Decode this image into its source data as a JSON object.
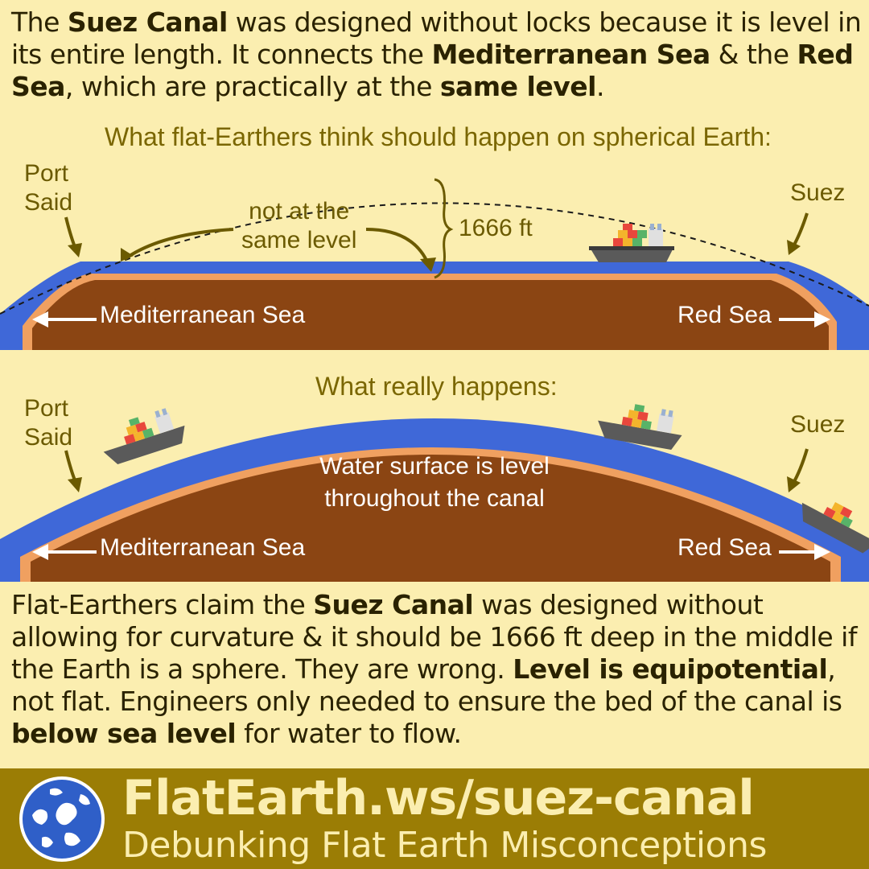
{
  "intro": {
    "t1": "The ",
    "b1": "Suez Canal",
    "t2": " was designed without locks because it is level in its entire length. It connects the ",
    "b2": "Mediterranean Sea",
    "t3": " & the ",
    "b3": "Red Sea",
    "t4": ", which are practically at the ",
    "b4": "same level",
    "t5": "."
  },
  "diagram_top": {
    "caption": "What flat-Earthers think should happen on spherical Earth:",
    "port_said": [
      "Port",
      "Said"
    ],
    "suez": "Suez",
    "not_level": [
      "not at the",
      "same level"
    ],
    "height": "1666 ft",
    "sea_left": "Mediterranean Sea",
    "sea_right": "Red Sea"
  },
  "diagram_bottom": {
    "caption": "What really happens:",
    "port_said": [
      "Port",
      "Said"
    ],
    "suez": "Suez",
    "note": [
      "Water surface is level",
      "throughout the canal"
    ],
    "sea_left": "Mediterranean Sea",
    "sea_right": "Red Sea"
  },
  "outro": {
    "t1": "Flat-Earthers claim the ",
    "b1": "Suez Canal",
    "t2": " was designed without allowing for curvature & it should be 1666 ft deep in the middle if the Earth is a sphere. They are wrong. ",
    "b2": "Level is equipotential",
    "t3": ", not flat. Engineers only needed to ensure the bed of the canal is ",
    "b3": "below sea level",
    "t4": " for water to flow."
  },
  "footer": {
    "url": "FlatEarth.ws/suez-canal",
    "tagline": "Debunking Flat Earth Misconceptions"
  },
  "colors": {
    "background": "#fbeeb0",
    "water": "#3f68d8",
    "land": "#8b4513",
    "shore": "#f0a060",
    "footer": "#9b7d05",
    "label": "#6b5a00"
  }
}
